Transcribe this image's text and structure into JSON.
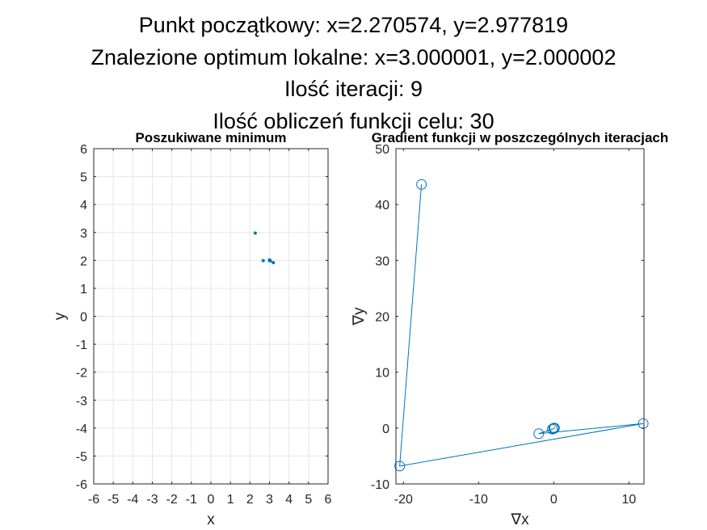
{
  "figure": {
    "title_lines": [
      "Punkt początkowy: x=2.270574, y=2.977819",
      "Znalezione optimum lokalne: x=3.000001, y=2.000002",
      "Ilość iteracji: 9",
      "Ilość obliczeń funkcji celu: 30"
    ]
  },
  "colors": {
    "series": "#0072bd",
    "grid": "#e6e6e6",
    "axis": "#262626"
  },
  "chart_data": [
    {
      "type": "scatter",
      "title": "Poszukiwane minimum",
      "xlabel": "x",
      "ylabel": "y",
      "xlim": [
        -6,
        6
      ],
      "ylim": [
        -6,
        6
      ],
      "xticks": [
        -6,
        -5,
        -4,
        -3,
        -2,
        -1,
        0,
        1,
        2,
        3,
        4,
        5,
        6
      ],
      "yticks": [
        -6,
        -5,
        -4,
        -3,
        -2,
        -1,
        0,
        1,
        2,
        3,
        4,
        5,
        6
      ],
      "grid": true,
      "marker": "dot",
      "series": [
        {
          "x": [
            2.270574,
            2.68,
            3.0,
            3.05,
            3.2,
            3.000001
          ],
          "y": [
            2.977819,
            1.99,
            2.02,
            1.98,
            1.92,
            2.000002
          ]
        }
      ]
    },
    {
      "type": "line",
      "title": "Gradient funkcji w  poszczególnych iteracjach",
      "xlabel": "∇x",
      "ylabel": "∇y",
      "xlim": [
        -21,
        12
      ],
      "ylim": [
        -10,
        50
      ],
      "xticks": [
        -20,
        -10,
        0,
        10
      ],
      "yticks": [
        -10,
        0,
        10,
        20,
        30,
        40,
        50
      ],
      "grid": false,
      "marker": "circle",
      "series": [
        {
          "x": [
            -17.6,
            -20.5,
            11.9,
            -2.0,
            -0.2,
            0.0,
            0.1,
            0.0
          ],
          "y": [
            43.6,
            -6.8,
            0.8,
            -1.0,
            -0.2,
            -0.1,
            0.0,
            0.0
          ]
        }
      ]
    }
  ]
}
